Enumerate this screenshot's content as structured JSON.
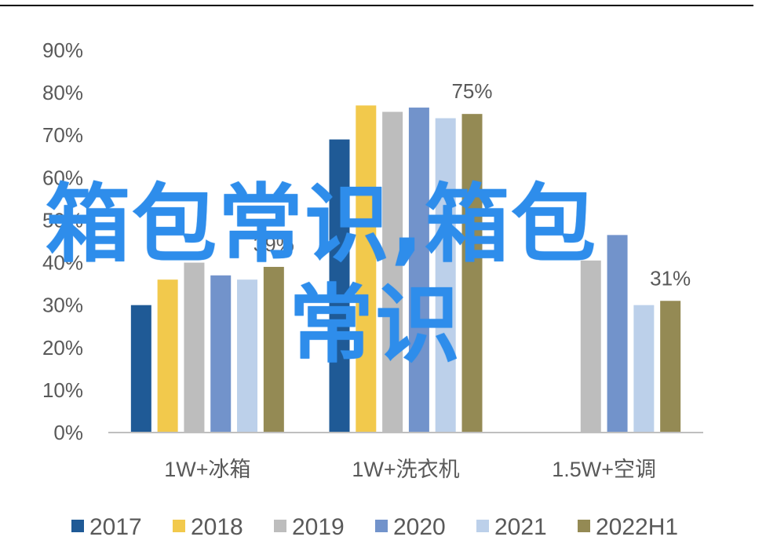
{
  "chart_data": {
    "type": "bar",
    "categories": [
      "1W+冰箱",
      "1W+洗衣机",
      "1.5W+空调"
    ],
    "series": [
      {
        "name": "2017",
        "color": "#1F5A96",
        "values": [
          30,
          69,
          null
        ]
      },
      {
        "name": "2018",
        "color": "#F2C94C",
        "values": [
          36,
          77,
          null
        ]
      },
      {
        "name": "2019",
        "color": "#BDBDBD",
        "values": [
          40,
          75.5,
          40.5
        ]
      },
      {
        "name": "2020",
        "color": "#7293CB",
        "values": [
          37,
          76.5,
          46.5
        ]
      },
      {
        "name": "2021",
        "color": "#BCD0EA",
        "values": [
          36,
          74,
          30
        ]
      },
      {
        "name": "2022H1",
        "color": "#948A54",
        "values": [
          39,
          75,
          31
        ]
      }
    ],
    "data_labels": [
      {
        "category": 0,
        "series": 5,
        "text": "39%"
      },
      {
        "category": 1,
        "series": 5,
        "text": "75%"
      },
      {
        "category": 2,
        "series": 5,
        "text": "31%"
      }
    ],
    "ylim": [
      0,
      90
    ],
    "ytick_values": [
      0,
      10,
      20,
      30,
      40,
      50,
      60,
      70,
      80,
      90
    ],
    "ytick_labels": [
      "0%",
      "10%",
      "20%",
      "30%",
      "40%",
      "50%",
      "60%",
      "70%",
      "80%",
      "90%"
    ],
    "xlabel": "",
    "ylabel": "",
    "legend_position": "bottom",
    "grid": false
  },
  "watermark": {
    "line1": "箱包常识,箱包",
    "line2": "常识",
    "color": "#2E8DEB"
  }
}
